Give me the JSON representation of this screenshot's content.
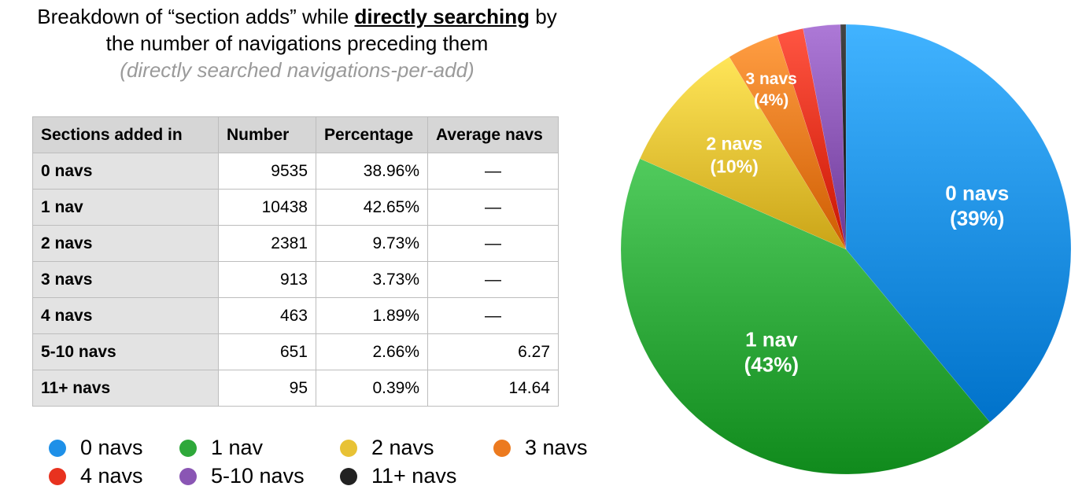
{
  "title": {
    "line1_pre": "Breakdown of “section adds” while ",
    "line1_bold": "directly searching",
    "line1_post": " by",
    "line2": "the number of navigations preceding them",
    "subtitle": "(directly searched navigations-per-add)"
  },
  "table": {
    "headers": [
      "Sections added in",
      "Number",
      "Percentage",
      "Average navs"
    ],
    "rows": [
      {
        "label": "0 navs",
        "number": "9535",
        "percentage": "38.96%",
        "average": "—"
      },
      {
        "label": "1 nav",
        "number": "10438",
        "percentage": "42.65%",
        "average": "—"
      },
      {
        "label": "2 navs",
        "number": "2381",
        "percentage": "9.73%",
        "average": "—"
      },
      {
        "label": "3 navs",
        "number": "913",
        "percentage": "3.73%",
        "average": "—"
      },
      {
        "label": "4 navs",
        "number": "463",
        "percentage": "1.89%",
        "average": "—"
      },
      {
        "label": "5-10 navs",
        "number": "651",
        "percentage": "2.66%",
        "average": "6.27"
      },
      {
        "label": "11+ navs",
        "number": "95",
        "percentage": "0.39%",
        "average": "14.64"
      }
    ]
  },
  "legend": [
    {
      "label": "0 navs",
      "color": "#1e90e8"
    },
    {
      "label": "1 nav",
      "color": "#2ea83a"
    },
    {
      "label": "2 navs",
      "color": "#e8c235"
    },
    {
      "label": "3 navs",
      "color": "#ec7a1f"
    },
    {
      "label": "4 navs",
      "color": "#e8321f"
    },
    {
      "label": "5-10 navs",
      "color": "#8a56b4"
    },
    {
      "label": "11+ navs",
      "color": "#222222"
    }
  ],
  "chart_data": {
    "type": "pie",
    "slices": [
      {
        "name": "0 navs",
        "value": 38.96,
        "color": "#1e90e8",
        "label_line1": "0 navs",
        "label_line2": "(39%)"
      },
      {
        "name": "1 nav",
        "value": 42.65,
        "color": "#2ea83a",
        "label_line1": "1 nav",
        "label_line2": "(43%)"
      },
      {
        "name": "2 navs",
        "value": 9.73,
        "color": "#e8c235",
        "label_line1": "2 navs",
        "label_line2": "(10%)"
      },
      {
        "name": "3 navs",
        "value": 3.73,
        "color": "#ec7a1f",
        "label_line1": "3 navs",
        "label_line2": "(4%)"
      },
      {
        "name": "4 navs",
        "value": 1.89,
        "color": "#e8321f"
      },
      {
        "name": "5-10 navs",
        "value": 2.66,
        "color": "#8a56b4"
      },
      {
        "name": "11+ navs",
        "value": 0.39,
        "color": "#222222"
      }
    ],
    "start": "12 o'clock",
    "direction": "clockwise"
  }
}
